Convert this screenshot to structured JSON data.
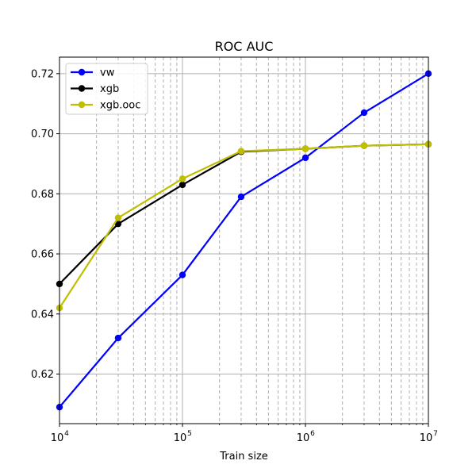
{
  "chart_data": {
    "type": "line",
    "title": "ROC AUC",
    "xlabel": "Train size",
    "ylabel": "",
    "xscale": "log",
    "xlim": [
      10000,
      10000000
    ],
    "ylim": [
      0.6035,
      0.7255
    ],
    "grid": true,
    "legend_position": "top-left",
    "x_ticks": [
      {
        "value": 10000,
        "base": "10",
        "exp": "4"
      },
      {
        "value": 100000,
        "base": "10",
        "exp": "5"
      },
      {
        "value": 1000000,
        "base": "10",
        "exp": "6"
      },
      {
        "value": 10000000,
        "base": "10",
        "exp": "7"
      }
    ],
    "y_ticks": [
      {
        "value": 0.62,
        "label": "0.62"
      },
      {
        "value": 0.64,
        "label": "0.64"
      },
      {
        "value": 0.66,
        "label": "0.66"
      },
      {
        "value": 0.68,
        "label": "0.68"
      },
      {
        "value": 0.7,
        "label": "0.70"
      },
      {
        "value": 0.72,
        "label": "0.72"
      }
    ],
    "x": [
      10000,
      30000,
      100000,
      300000,
      1000000,
      3000000,
      10000000
    ],
    "series": [
      {
        "name": "vw",
        "color": "#0000ff",
        "values": [
          0.609,
          0.632,
          0.653,
          0.679,
          0.692,
          0.707,
          0.72
        ]
      },
      {
        "name": "xgb",
        "color": "#000000",
        "values": [
          0.65,
          0.67,
          0.683,
          0.694,
          0.695,
          0.696,
          0.6965
        ]
      },
      {
        "name": "xgb.ooc",
        "color": "#bfbf00",
        "values": [
          0.642,
          0.672,
          0.685,
          0.6942,
          0.695,
          0.696,
          0.6965
        ]
      }
    ]
  }
}
